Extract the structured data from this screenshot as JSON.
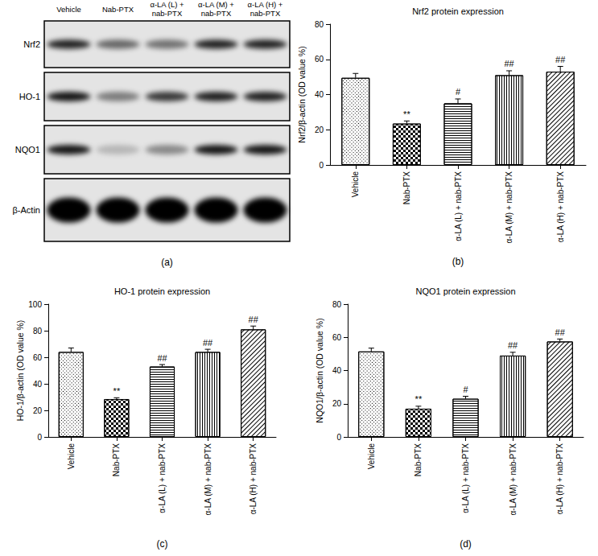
{
  "blot": {
    "panel": "(a)",
    "lanes": [
      "Vehicle",
      "Nab-PTX",
      "α-LA (L) + nab-PTX",
      "α-LA (M) + nab-PTX",
      "α-LA (H) + nab-PTX"
    ],
    "rows": [
      {
        "label": "Nrf2",
        "intensity": [
          0.85,
          0.55,
          0.5,
          0.85,
          0.85
        ]
      },
      {
        "label": "HO-1",
        "intensity": [
          0.9,
          0.45,
          0.75,
          0.85,
          0.85
        ]
      },
      {
        "label": "NQO1",
        "intensity": [
          0.9,
          0.2,
          0.4,
          0.9,
          0.9
        ]
      },
      {
        "label": "β-Actin",
        "intensity": [
          1,
          1,
          1,
          1,
          1
        ]
      }
    ]
  },
  "chart_data": [
    {
      "type": "bar",
      "panel": "(b)",
      "title": "Nrf2 protein expression",
      "y_label": "Nrf2/β-actin (OD value %)",
      "categories": [
        "Vehicle",
        "Nab-PTX",
        "α-LA (L) + nab-PTX",
        "α-LA (M) + nab-PTX",
        "α-LA (H) + nab-PTX"
      ],
      "values": [
        49.5,
        23.5,
        35,
        51,
        53
      ],
      "errors": [
        2.5,
        1.5,
        2.5,
        2.5,
        3
      ],
      "annotations": [
        null,
        "**",
        "#",
        "##",
        "##"
      ],
      "color": "#000000",
      "ylim": [
        0,
        80
      ],
      "yticks": [
        0,
        20,
        40,
        60,
        80
      ],
      "grid": false
    },
    {
      "type": "bar",
      "panel": "(c)",
      "title": "HO-1 protein expression",
      "y_label": "HO-1/β-actin (OD value %)",
      "categories": [
        "Vehicle",
        "Nab-PTX",
        "α-LA (L) + nab-PTX",
        "α-LA (M) + nab-PTX",
        "α-LA (H) + nab-PTX"
      ],
      "values": [
        64,
        28.5,
        53,
        64,
        81
      ],
      "errors": [
        3,
        1,
        1.5,
        2,
        2.5
      ],
      "annotations": [
        null,
        "**",
        "##",
        "##",
        "##"
      ],
      "color": "#000000",
      "ylim": [
        0,
        100
      ],
      "yticks": [
        0,
        20,
        40,
        60,
        80,
        100
      ],
      "grid": false
    },
    {
      "type": "bar",
      "panel": "(d)",
      "title": "NQO1 protein expression",
      "y_label": "NQO1/β-actin (OD value %)",
      "categories": [
        "Vehicle",
        "Nab-PTX",
        "α-LA (L) + nab-PTX",
        "α-LA (M) + nab-PTX",
        "α-LA (H) + nab-PTX"
      ],
      "values": [
        51.5,
        17,
        23,
        49,
        57.5
      ],
      "errors": [
        2,
        1.5,
        1.5,
        2,
        1.5
      ],
      "annotations": [
        null,
        "**",
        "#",
        "##",
        "##"
      ],
      "color": "#000000",
      "ylim": [
        0,
        80
      ],
      "yticks": [
        0,
        20,
        40,
        60,
        80
      ],
      "grid": false
    }
  ]
}
